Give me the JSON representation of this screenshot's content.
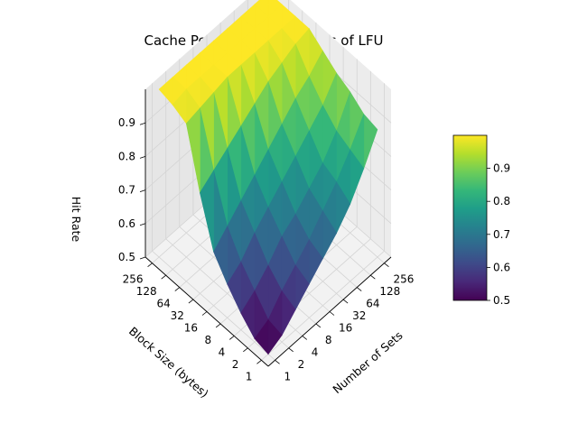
{
  "chart_data": {
    "type": "surface3d",
    "title": "Cache Performance Analysis of LFU",
    "xlabel": "Number of Sets",
    "ylabel": "Block Size (bytes)",
    "zlabel": "Hit Rate",
    "x_ticks": [
      "1",
      "2",
      "4",
      "8",
      "16",
      "32",
      "64",
      "128",
      "256"
    ],
    "y_ticks": [
      "1",
      "2",
      "4",
      "8",
      "16",
      "32",
      "64",
      "128",
      "256"
    ],
    "z_ticks": [
      "0.5",
      "0.6",
      "0.7",
      "0.8",
      "0.9"
    ],
    "zlim": [
      0.5,
      1.0
    ],
    "colormap": "viridis",
    "colorbar_ticks": [
      "0.5",
      "0.6",
      "0.7",
      "0.8",
      "0.9"
    ],
    "colorbar_range": [
      0.5,
      1.0
    ],
    "grid": true,
    "z": [
      [
        0.5,
        0.52,
        0.56,
        0.6,
        0.64,
        0.68,
        0.73,
        0.8,
        0.88
      ],
      [
        0.51,
        0.53,
        0.58,
        0.62,
        0.66,
        0.71,
        0.76,
        0.82,
        0.89
      ],
      [
        0.55,
        0.58,
        0.62,
        0.67,
        0.7,
        0.74,
        0.78,
        0.84,
        0.92
      ],
      [
        0.6,
        0.63,
        0.68,
        0.72,
        0.76,
        0.8,
        0.84,
        0.88,
        0.94
      ],
      [
        0.66,
        0.7,
        0.74,
        0.78,
        0.82,
        0.86,
        0.9,
        0.93,
        0.97
      ],
      [
        0.8,
        0.83,
        0.86,
        0.89,
        0.92,
        0.95,
        0.97,
        0.99,
        1.0
      ],
      [
        0.97,
        0.98,
        0.99,
        1.0,
        1.0,
        1.0,
        1.0,
        1.0,
        1.0
      ],
      [
        0.99,
        1.0,
        1.0,
        1.0,
        1.0,
        1.0,
        1.0,
        1.0,
        1.0
      ],
      [
        1.0,
        1.0,
        1.0,
        1.0,
        1.0,
        1.0,
        1.0,
        1.0,
        1.0
      ]
    ]
  }
}
